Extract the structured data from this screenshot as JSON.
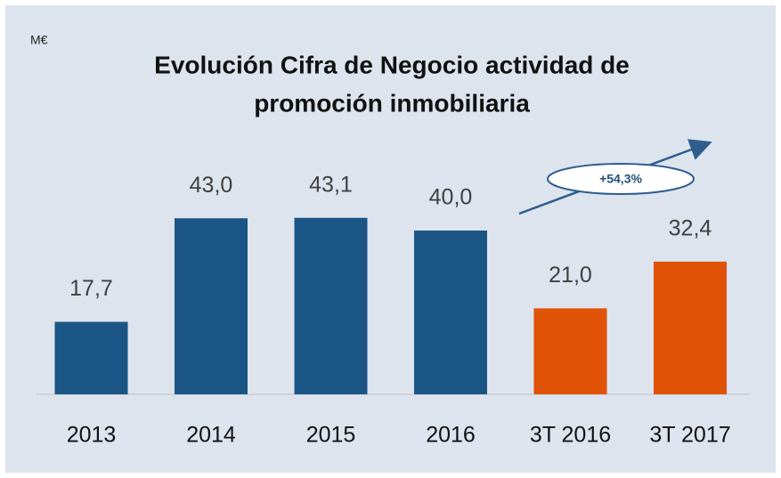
{
  "chart_data": {
    "type": "bar",
    "title": [
      "Evolución Cifra de Negocio actividad de",
      "promoción inmobiliaria"
    ],
    "unit_label": "M€",
    "categories": [
      "2013",
      "2014",
      "2015",
      "2016",
      "3T 2016",
      "3T 2017"
    ],
    "values": [
      17.7,
      43.0,
      43.1,
      40.0,
      21.0,
      32.4
    ],
    "value_labels": [
      "17,7",
      "43,0",
      "43,1",
      "40,0",
      "21,0",
      "32,4"
    ],
    "colors": [
      "#1a5585",
      "#1a5585",
      "#1a5585",
      "#1a5585",
      "#e05206",
      "#e05206"
    ],
    "annotation": "+54,3%"
  }
}
